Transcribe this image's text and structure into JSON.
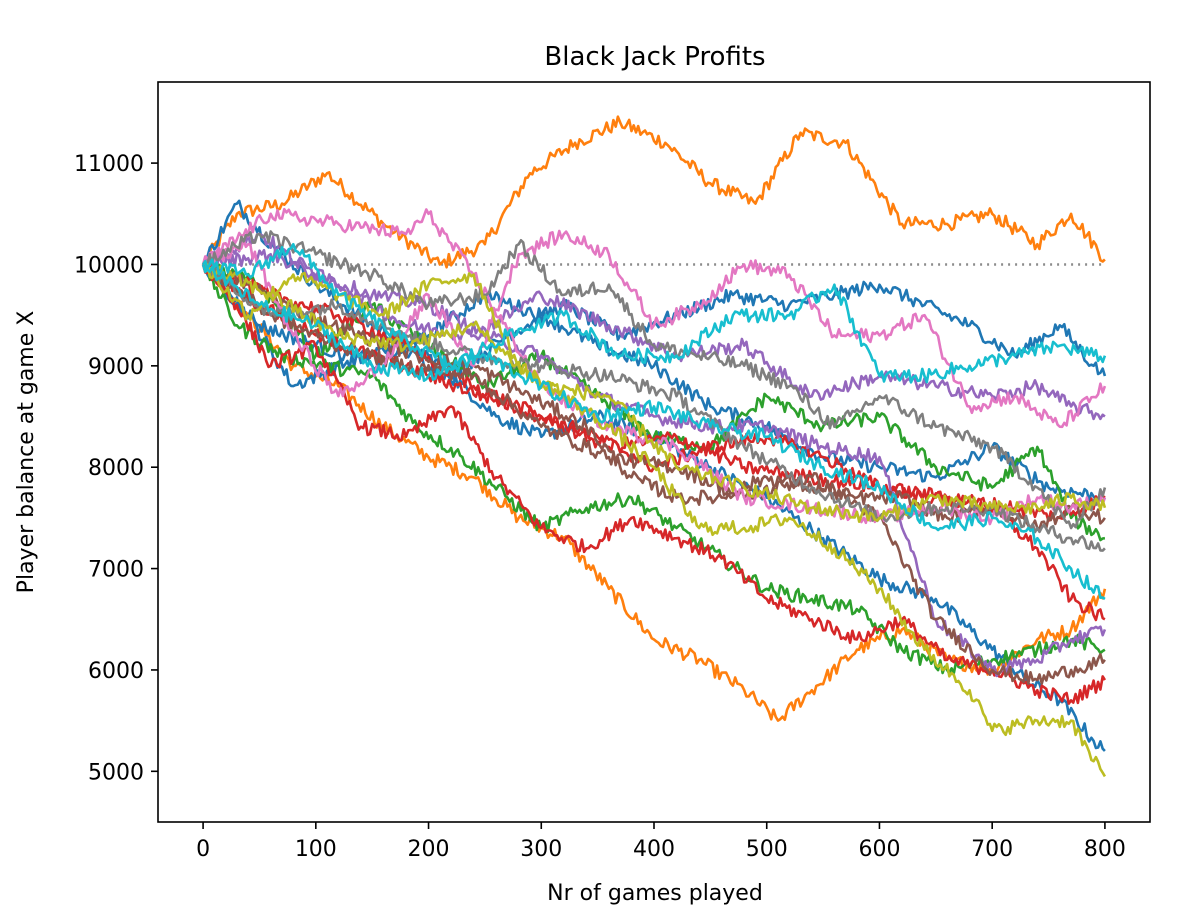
{
  "chart_data": {
    "type": "line",
    "title": "Black Jack Profits",
    "xlabel": "Nr of games played",
    "ylabel": "Player balance at game X",
    "xlim": [
      -40,
      840
    ],
    "ylim": [
      4500,
      11800
    ],
    "xticks": [
      0,
      100,
      200,
      300,
      400,
      500,
      600,
      700,
      800
    ],
    "yticks": [
      5000,
      6000,
      7000,
      8000,
      9000,
      10000,
      11000
    ],
    "grid": false,
    "legend": "none",
    "reference_line": {
      "y": 10000,
      "x": [
        0,
        800
      ],
      "style": "dotted",
      "color": "#8c8c8c"
    },
    "series": [
      {
        "color": "#ff7f0e",
        "x": [
          0,
          30,
          70,
          110,
          160,
          210,
          250,
          290,
          330,
          370,
          410,
          450,
          490,
          530,
          570,
          620,
          660,
          700,
          740,
          770,
          800
        ],
        "values": [
          10000,
          10500,
          10600,
          10900,
          10400,
          10000,
          10200,
          10900,
          11200,
          11400,
          11200,
          10800,
          10600,
          11300,
          11200,
          10400,
          10400,
          10500,
          10200,
          10500,
          10050
        ]
      },
      {
        "color": "#ff7f0e",
        "x": [
          0,
          40,
          80,
          120,
          160,
          200,
          240,
          280,
          320,
          360,
          400,
          440,
          480,
          510,
          540,
          580,
          620,
          660,
          700,
          740,
          770,
          800
        ],
        "values": [
          10000,
          9500,
          9000,
          8800,
          8400,
          8100,
          7900,
          7500,
          7300,
          6800,
          6300,
          6100,
          5800,
          5500,
          5800,
          6200,
          6400,
          6100,
          6000,
          6300,
          6400,
          6800
        ]
      },
      {
        "color": "#1f77b4",
        "x": [
          0,
          30,
          60,
          100,
          150,
          200,
          260,
          300,
          350,
          400,
          450,
          500,
          550,
          600,
          650,
          700,
          730,
          760,
          790,
          800
        ],
        "values": [
          10000,
          10600,
          10200,
          9800,
          9400,
          9100,
          8500,
          8300,
          8500,
          8300,
          8000,
          7700,
          7300,
          6900,
          6700,
          6200,
          5900,
          5700,
          5300,
          5200
        ]
      },
      {
        "color": "#1f77b4",
        "x": [
          0,
          40,
          80,
          120,
          170,
          220,
          270,
          320,
          370,
          420,
          470,
          520,
          560,
          600,
          640,
          680,
          720,
          760,
          790,
          800
        ],
        "values": [
          10000,
          9500,
          8800,
          9000,
          9200,
          8900,
          9300,
          9600,
          9300,
          9500,
          9700,
          9600,
          9700,
          9800,
          9600,
          9400,
          9100,
          9400,
          9000,
          8900
        ]
      },
      {
        "color": "#1f77b4",
        "x": [
          0,
          50,
          100,
          150,
          200,
          250,
          300,
          350,
          400,
          450,
          500,
          550,
          600,
          650,
          700,
          750,
          800
        ],
        "values": [
          10000,
          9400,
          9200,
          9000,
          9300,
          9700,
          9500,
          9200,
          9000,
          8600,
          8400,
          8100,
          8000,
          7900,
          8200,
          7800,
          7700
        ]
      },
      {
        "color": "#2ca02c",
        "x": [
          0,
          30,
          70,
          110,
          150,
          190,
          230,
          270,
          300,
          340,
          380,
          420,
          460,
          500,
          540,
          580,
          620,
          660,
          700,
          740,
          770,
          800
        ],
        "values": [
          10000,
          9400,
          9100,
          9000,
          8900,
          8400,
          8100,
          7700,
          7400,
          7600,
          7700,
          7400,
          7100,
          6800,
          6700,
          6600,
          6200,
          6000,
          6100,
          6200,
          6300,
          6200
        ]
      },
      {
        "color": "#2ca02c",
        "x": [
          0,
          50,
          100,
          150,
          200,
          250,
          300,
          350,
          400,
          450,
          500,
          550,
          600,
          650,
          700,
          740,
          770,
          800
        ],
        "values": [
          10000,
          9800,
          9100,
          9600,
          9200,
          8800,
          9100,
          8700,
          8300,
          8200,
          8700,
          8400,
          8500,
          8000,
          7800,
          8200,
          7500,
          7300
        ]
      },
      {
        "color": "#d62728",
        "x": [
          0,
          30,
          60,
          100,
          140,
          180,
          220,
          260,
          300,
          340,
          380,
          420,
          460,
          500,
          540,
          580,
          620,
          660,
          700,
          740,
          770,
          800
        ],
        "values": [
          10000,
          9600,
          9000,
          9200,
          8400,
          8300,
          8600,
          7900,
          7400,
          7200,
          7500,
          7300,
          7100,
          6700,
          6500,
          6300,
          6500,
          6100,
          6000,
          5800,
          5700,
          5900
        ]
      },
      {
        "color": "#d62728",
        "x": [
          0,
          50,
          100,
          150,
          200,
          250,
          300,
          350,
          400,
          450,
          500,
          550,
          600,
          650,
          700,
          740,
          770,
          800
        ],
        "values": [
          10000,
          9600,
          9300,
          9100,
          8900,
          8700,
          8500,
          8300,
          8000,
          8200,
          8300,
          8100,
          7800,
          7700,
          7600,
          7200,
          6700,
          6500
        ]
      },
      {
        "color": "#d62728",
        "x": [
          0,
          60,
          120,
          180,
          240,
          300,
          360,
          420,
          480,
          540,
          600,
          660,
          720,
          760,
          800
        ],
        "values": [
          10000,
          9700,
          9500,
          9200,
          8800,
          8500,
          8200,
          8300,
          8000,
          7900,
          7800,
          7700,
          7600,
          7500,
          7700
        ]
      },
      {
        "color": "#9467bd",
        "x": [
          0,
          50,
          100,
          150,
          200,
          250,
          300,
          350,
          400,
          450,
          500,
          550,
          600,
          650,
          700,
          740,
          770,
          800
        ],
        "values": [
          10000,
          10300,
          9900,
          9700,
          9600,
          9300,
          9100,
          8700,
          8500,
          8400,
          8400,
          8200,
          8100,
          6500,
          6000,
          6100,
          6300,
          6400
        ]
      },
      {
        "color": "#9467bd",
        "x": [
          0,
          60,
          120,
          180,
          240,
          300,
          360,
          420,
          480,
          540,
          600,
          650,
          700,
          740,
          770,
          800
        ],
        "values": [
          10000,
          10100,
          9800,
          9400,
          9300,
          9700,
          9400,
          9100,
          9200,
          8700,
          8900,
          8800,
          8700,
          8800,
          8600,
          8500
        ]
      },
      {
        "color": "#8c564b",
        "x": [
          0,
          40,
          90,
          140,
          190,
          240,
          290,
          340,
          380,
          420,
          460,
          500,
          540,
          580,
          620,
          660,
          700,
          740,
          770,
          800
        ],
        "values": [
          10000,
          9800,
          9500,
          9300,
          9100,
          9000,
          8700,
          8400,
          7900,
          7700,
          7700,
          7900,
          7800,
          7700,
          7700,
          7500,
          7600,
          7400,
          7600,
          7500
        ]
      },
      {
        "color": "#8c564b",
        "x": [
          0,
          60,
          120,
          180,
          240,
          300,
          360,
          420,
          480,
          540,
          600,
          650,
          700,
          740,
          770,
          800
        ],
        "values": [
          10000,
          9500,
          9200,
          9000,
          8900,
          8400,
          8100,
          8000,
          7700,
          7900,
          7500,
          6500,
          6000,
          5900,
          6000,
          6100
        ]
      },
      {
        "color": "#e377c2",
        "x": [
          0,
          40,
          80,
          120,
          160,
          200,
          240,
          280,
          320,
          360,
          400,
          440,
          480,
          520,
          560,
          600,
          640,
          680,
          720,
          760,
          800
        ],
        "values": [
          10000,
          10200,
          9300,
          8700,
          9000,
          9700,
          9000,
          10100,
          10300,
          10100,
          9400,
          9600,
          10000,
          9900,
          9300,
          9300,
          9500,
          8600,
          8700,
          8400,
          8800
        ]
      },
      {
        "color": "#e377c2",
        "x": [
          0,
          60,
          120,
          180,
          200,
          240,
          300,
          360,
          420,
          480,
          540,
          600,
          650,
          700,
          740,
          770,
          800
        ],
        "values": [
          10000,
          10500,
          10400,
          10300,
          10500,
          9900,
          8800,
          8400,
          8200,
          7700,
          7600,
          7500,
          7600,
          7500,
          7700,
          7600,
          7700
        ]
      },
      {
        "color": "#7f7f7f",
        "x": [
          0,
          50,
          100,
          150,
          200,
          250,
          280,
          320,
          360,
          400,
          440,
          480,
          520,
          560,
          600,
          650,
          700,
          740,
          770,
          800
        ],
        "values": [
          10000,
          10300,
          10100,
          9900,
          9600,
          9700,
          10200,
          9700,
          9800,
          9200,
          9100,
          9000,
          8800,
          8400,
          8700,
          8400,
          8200,
          7800,
          7400,
          7800
        ]
      },
      {
        "color": "#7f7f7f",
        "x": [
          0,
          60,
          120,
          180,
          240,
          300,
          360,
          420,
          480,
          540,
          600,
          650,
          700,
          740,
          770,
          800
        ],
        "values": [
          10000,
          9500,
          9600,
          9300,
          9100,
          9000,
          8900,
          8700,
          8200,
          7800,
          7500,
          7600,
          7600,
          7400,
          7300,
          7200
        ]
      },
      {
        "color": "#bcbd22",
        "x": [
          0,
          40,
          80,
          120,
          160,
          200,
          240,
          280,
          320,
          360,
          400,
          440,
          480,
          520,
          560,
          600,
          640,
          680,
          700,
          740,
          770,
          790,
          800
        ],
        "values": [
          10000,
          9500,
          9900,
          9700,
          9500,
          9800,
          9900,
          9000,
          8700,
          8400,
          8000,
          7400,
          7400,
          7500,
          7200,
          6800,
          6200,
          5800,
          5400,
          5500,
          5500,
          5100,
          4950
        ]
      },
      {
        "color": "#bcbd22",
        "x": [
          0,
          60,
          120,
          180,
          240,
          300,
          360,
          420,
          480,
          540,
          600,
          650,
          700,
          740,
          770,
          800
        ],
        "values": [
          10000,
          9700,
          9300,
          9200,
          9400,
          8800,
          8700,
          8000,
          7800,
          7600,
          7500,
          7700,
          7600,
          7600,
          7700,
          7600
        ]
      },
      {
        "color": "#17becf",
        "x": [
          0,
          40,
          80,
          120,
          170,
          220,
          270,
          320,
          370,
          420,
          470,
          520,
          560,
          600,
          640,
          680,
          720,
          760,
          790,
          800
        ],
        "values": [
          10000,
          9900,
          10200,
          9700,
          9300,
          9000,
          9300,
          9500,
          9100,
          9100,
          9500,
          9500,
          9800,
          8900,
          8900,
          9000,
          9100,
          9200,
          9100,
          9100
        ]
      },
      {
        "color": "#17becf",
        "x": [
          0,
          50,
          100,
          150,
          200,
          250,
          300,
          350,
          400,
          450,
          500,
          550,
          600,
          650,
          700,
          740,
          770,
          800
        ],
        "values": [
          10000,
          9600,
          9400,
          9000,
          8900,
          9100,
          8800,
          8500,
          8600,
          8400,
          8300,
          8000,
          7800,
          7400,
          7500,
          7300,
          7000,
          6700
        ]
      }
    ]
  }
}
